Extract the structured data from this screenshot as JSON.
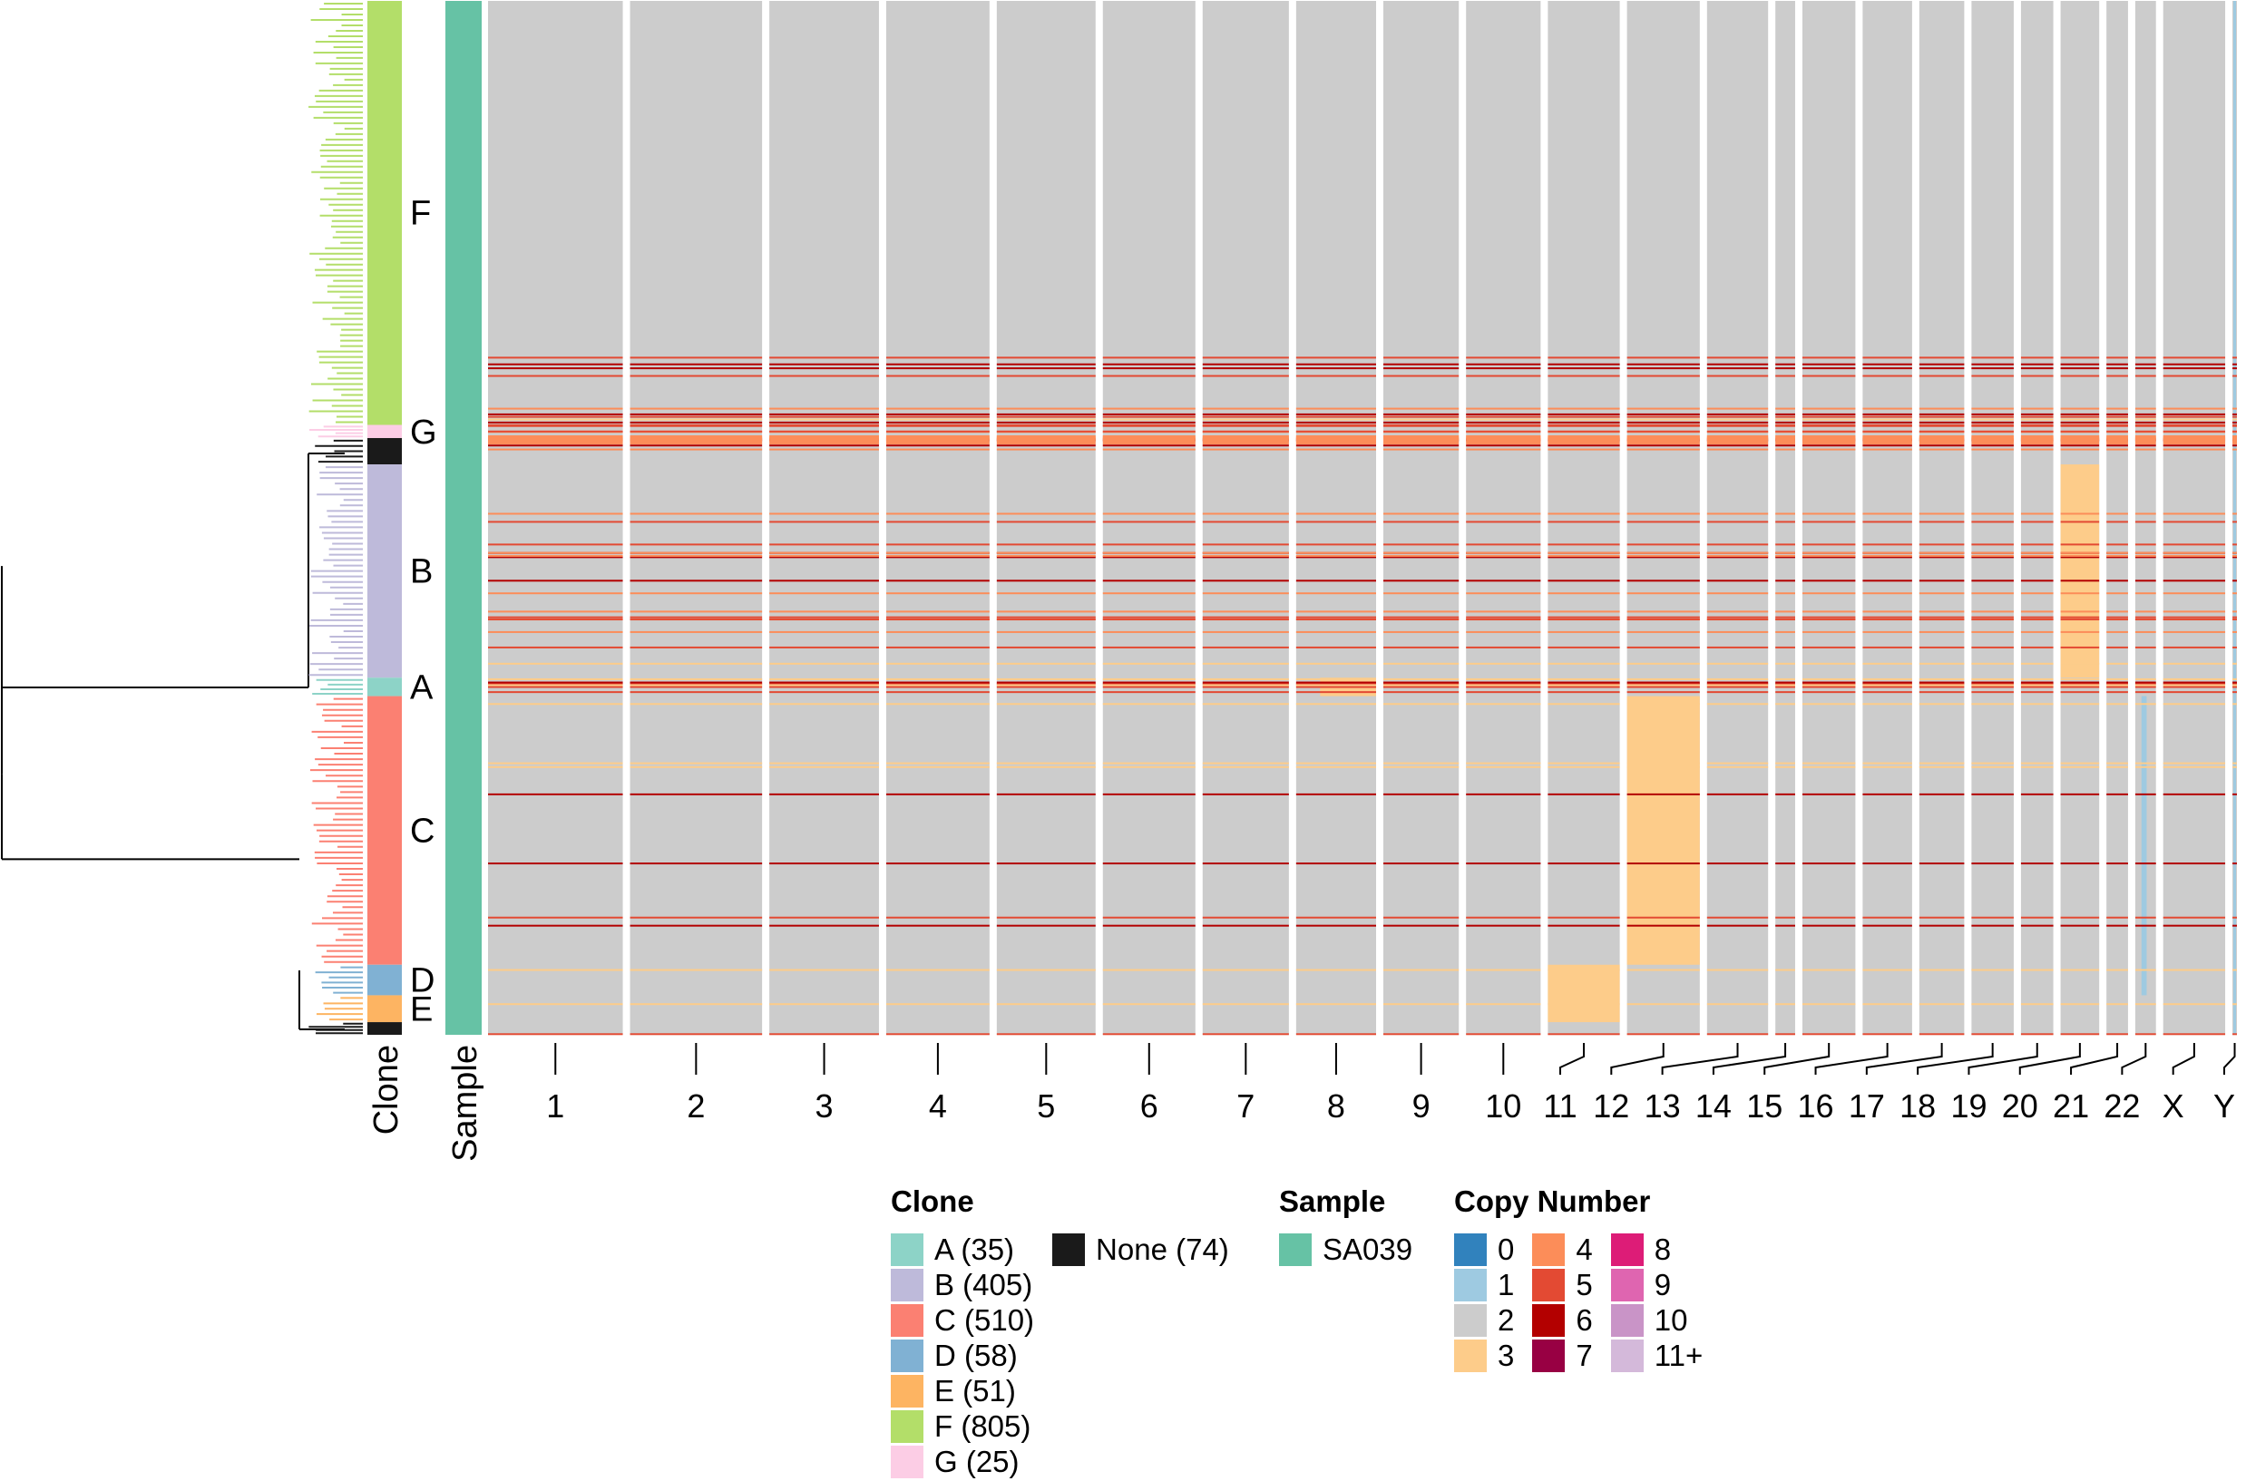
{
  "chart_data": {
    "type": "heatmap",
    "title": "",
    "xlabel": "",
    "ylabel": "",
    "track_labels": {
      "clone": "Clone",
      "sample": "Sample"
    },
    "chromosomes": [
      "1",
      "2",
      "3",
      "4",
      "5",
      "6",
      "7",
      "8",
      "9",
      "10",
      "11",
      "12",
      "13",
      "14",
      "15",
      "16",
      "17",
      "18",
      "19",
      "20",
      "21",
      "22",
      "X",
      "Y"
    ],
    "chromosome_relative_widths": [
      150,
      147,
      122,
      115,
      110,
      103,
      96,
      89,
      84,
      83,
      80,
      81,
      68,
      22,
      59,
      55,
      50,
      47,
      36,
      43,
      24,
      23,
      69,
      5
    ],
    "clones_top_to_bottom": [
      {
        "label": "F",
        "count": 805
      },
      {
        "label": "G",
        "count": 25
      },
      {
        "label": "None",
        "count": 50
      },
      {
        "label": "B",
        "count": 405
      },
      {
        "label": "A",
        "count": 35
      },
      {
        "label": "C",
        "count": 510
      },
      {
        "label": "D",
        "count": 58
      },
      {
        "label": "E",
        "count": 51
      },
      {
        "label": "None",
        "count": 24
      }
    ],
    "clone_annotation_labels": [
      "F",
      "G",
      "B",
      "A",
      "C",
      "D",
      "E"
    ],
    "background_copy_number": 2,
    "notable_events": [
      {
        "description": "chr20 gain in clone B",
        "chromosome": "20",
        "clone": "B",
        "copy_number": 3
      },
      {
        "description": "chr12 gain in clone C",
        "chromosome": "12",
        "clone": "C",
        "copy_number": 3
      },
      {
        "description": "chr11 gain in clones D/E",
        "chromosome": "11",
        "clone": "D",
        "copy_number": 3
      },
      {
        "description": "chr8 partial gain in clone A",
        "chromosome": "8",
        "clone": "A",
        "copy_number": 3
      },
      {
        "description": "chr22 loss in clones C/D",
        "chromosome": "22",
        "clone": "C",
        "copy_number": 1
      },
      {
        "description": "chrY single copy across all cells",
        "chromosome": "Y",
        "clone": "all",
        "copy_number": 1
      }
    ],
    "legends": {
      "clone": {
        "title": "Clone",
        "items": [
          {
            "label": "A (35)",
            "color": "#8DD3C7"
          },
          {
            "label": "B (405)",
            "color": "#BEBADA"
          },
          {
            "label": "C (510)",
            "color": "#FB8072"
          },
          {
            "label": "D (58)",
            "color": "#80B1D3"
          },
          {
            "label": "E (51)",
            "color": "#FDB462"
          },
          {
            "label": "F (805)",
            "color": "#B3DE69"
          },
          {
            "label": "G (25)",
            "color": "#FCCDE5"
          },
          {
            "label": "None (74)",
            "color": "#1A1A1A"
          }
        ]
      },
      "sample": {
        "title": "Sample",
        "items": [
          {
            "label": "SA039",
            "color": "#66C2A5"
          }
        ]
      },
      "copy_number": {
        "title": "Copy Number",
        "items": [
          {
            "label": "0",
            "color": "#3182BD"
          },
          {
            "label": "1",
            "color": "#9ECAE1"
          },
          {
            "label": "2",
            "color": "#CCCCCC"
          },
          {
            "label": "3",
            "color": "#FDCC8A"
          },
          {
            "label": "4",
            "color": "#FC8D59"
          },
          {
            "label": "5",
            "color": "#E34A33"
          },
          {
            "label": "6",
            "color": "#B30000"
          },
          {
            "label": "7",
            "color": "#980043"
          },
          {
            "label": "8",
            "color": "#DD1C77"
          },
          {
            "label": "9",
            "color": "#DF65B0"
          },
          {
            "label": "10",
            "color": "#C994C7"
          },
          {
            "label": "11+",
            "color": "#D4B9DA"
          }
        ]
      }
    }
  }
}
